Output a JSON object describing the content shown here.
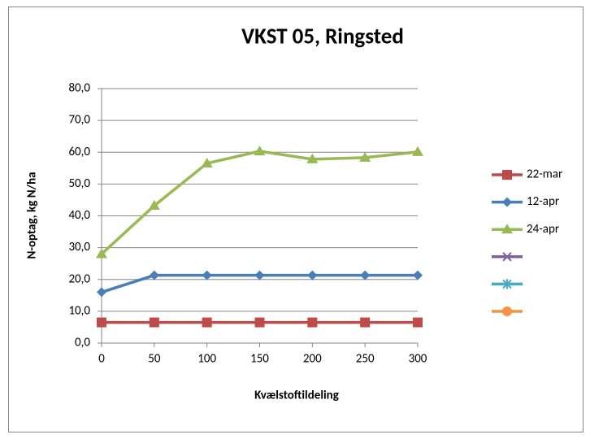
{
  "chart_data": {
    "type": "line",
    "title": "VKST 05, Ringsted",
    "x_label": "Kvælstoftildeling",
    "y_label": "N-optag, kg N/ha",
    "x": [
      0,
      50,
      100,
      150,
      200,
      250,
      300
    ],
    "series": [
      {
        "name": "22-mar",
        "color": "#be4b48",
        "marker": "square",
        "values": [
          6.5,
          6.5,
          6.5,
          6.5,
          6.5,
          6.5,
          6.5
        ]
      },
      {
        "name": "12-apr",
        "color": "#4a7ebb",
        "marker": "diamond",
        "values": [
          16,
          21.3,
          21.3,
          21.3,
          21.3,
          21.3,
          21.3
        ]
      },
      {
        "name": "24-apr",
        "color": "#98b954",
        "marker": "triangle",
        "values": [
          28,
          43.2,
          56.5,
          60.3,
          57.8,
          58.3,
          60.1
        ]
      },
      {
        "name": null,
        "color": "#7d60a0",
        "marker": "x",
        "values": [
          null,
          null,
          null,
          null,
          null,
          null,
          null
        ]
      },
      {
        "name": null,
        "color": "#46aac5",
        "marker": "star",
        "values": [
          null,
          null,
          null,
          null,
          null,
          null,
          null
        ]
      },
      {
        "name": null,
        "color": "#f69240",
        "marker": "circle",
        "values": [
          null,
          null,
          null,
          null,
          null,
          null,
          null
        ]
      }
    ],
    "xlim": [
      0,
      300
    ],
    "xticks": [
      0,
      50,
      100,
      150,
      200,
      250,
      300
    ],
    "ylim": [
      0,
      80
    ],
    "yticks": [
      {
        "value": 0,
        "label": "0,0"
      },
      {
        "value": 10,
        "label": "10,0"
      },
      {
        "value": 20,
        "label": "20,0"
      },
      {
        "value": 30,
        "label": "30,0"
      },
      {
        "value": 40,
        "label": "40,0"
      },
      {
        "value": 50,
        "label": "50,0"
      },
      {
        "value": 60,
        "label": "60,0"
      },
      {
        "value": 70,
        "label": "70,0"
      },
      {
        "value": 80,
        "label": "80,0"
      }
    ],
    "grid": true,
    "legend": "right"
  }
}
